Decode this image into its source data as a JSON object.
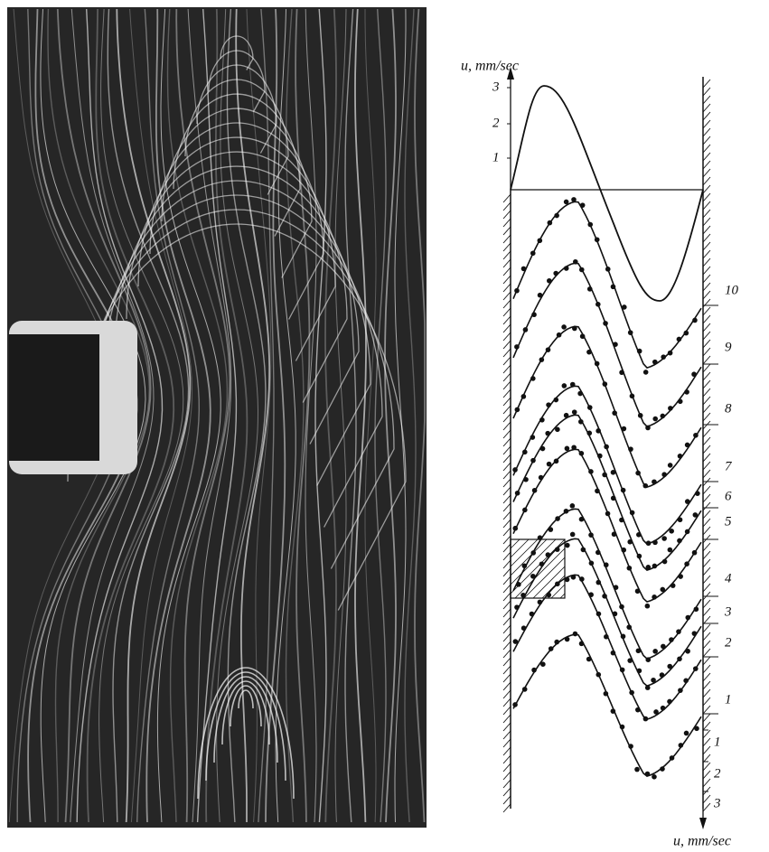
{
  "plot": {
    "top_axis_label": "u, mm/sec",
    "top_ticks": [
      3,
      2,
      1
    ],
    "profile_labels": [
      10,
      9,
      8,
      7,
      6,
      5,
      4,
      3,
      2,
      1
    ],
    "bottom_ticks": [
      1,
      2,
      3
    ],
    "bottom_axis_label": "u, mm/sec"
  }
}
